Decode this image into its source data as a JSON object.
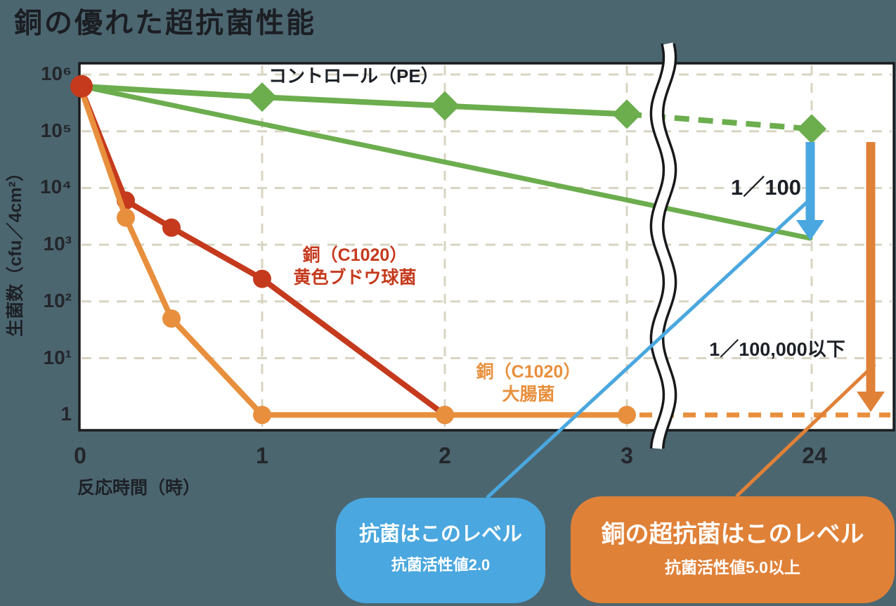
{
  "page": {
    "background_color": "#4c6670",
    "title": "銅の優れた超抗菌性能"
  },
  "chart_data": {
    "type": "line",
    "title": "銅の優れた超抗菌性能",
    "xlabel": "反応時間（時）",
    "ylabel": "生菌数（cfu／4cm²）",
    "x_ticks": [
      "0",
      "1",
      "2",
      "3",
      "24"
    ],
    "x_values": [
      0,
      1,
      2,
      3,
      24
    ],
    "x_axis_break_between": [
      3,
      24
    ],
    "y_scale": "log10",
    "y_range": [
      1,
      1000000
    ],
    "y_tick_labels": [
      "10⁶",
      "10⁵",
      "10⁴",
      "10³",
      "10²",
      "10¹",
      "1"
    ],
    "grid": "dashed",
    "plot_background": "#ffffff",
    "grid_color": "#d8d4c2",
    "series": [
      {
        "name": "コントロール（PE）",
        "marker": "diamond",
        "color": "#6cad4e",
        "points": [
          [
            0,
            620000
          ],
          [
            1,
            400000
          ],
          [
            2,
            280000
          ],
          [
            3,
            200000
          ],
          [
            24,
            110000
          ]
        ],
        "dashed_after": 3,
        "label": {
          "line1": "コントロール（PE）",
          "line2": ""
        }
      },
      {
        "name": "銅（C1020）黄色ブドウ球菌",
        "marker": "circle",
        "color": "#c53a1d",
        "points": [
          [
            0,
            620000
          ],
          [
            0.25,
            6000
          ],
          [
            0.5,
            2000
          ],
          [
            1,
            250
          ],
          [
            2,
            1
          ]
        ],
        "label": {
          "line1": "銅（C1020）",
          "line2": "黄色ブドウ球菌"
        }
      },
      {
        "name": "銅（C1020）大腸菌",
        "marker": "circle",
        "color": "#e88f3d",
        "points": [
          [
            0,
            620000
          ],
          [
            0.25,
            3000
          ],
          [
            0.5,
            50
          ],
          [
            1,
            1
          ],
          [
            2,
            1
          ],
          [
            3,
            1
          ],
          [
            24,
            1
          ]
        ],
        "dashed_after": 3,
        "dash_extends_to_edge": true,
        "label": {
          "line1": "銅（C1020）",
          "line2": "大腸菌"
        }
      }
    ],
    "reference_line": {
      "color": "#6cad4e",
      "from": [
        0,
        620000
      ],
      "to": [
        24,
        1300
      ]
    },
    "annotations": {
      "reduction_100": {
        "text": "1／100",
        "arrow_color": "#4aa7df"
      },
      "reduction_100000": {
        "text": "1／100,000以下",
        "arrow_color": "#e08138"
      }
    }
  },
  "callouts": {
    "antibacterial": {
      "line1": "抗菌はこのレベル",
      "line2": "抗菌活性値2.0",
      "color": "#4aa7df"
    },
    "copper": {
      "line1": "銅の超抗菌はこのレベル",
      "line2": "抗菌活性値5.0以上",
      "color": "#e08138"
    }
  }
}
